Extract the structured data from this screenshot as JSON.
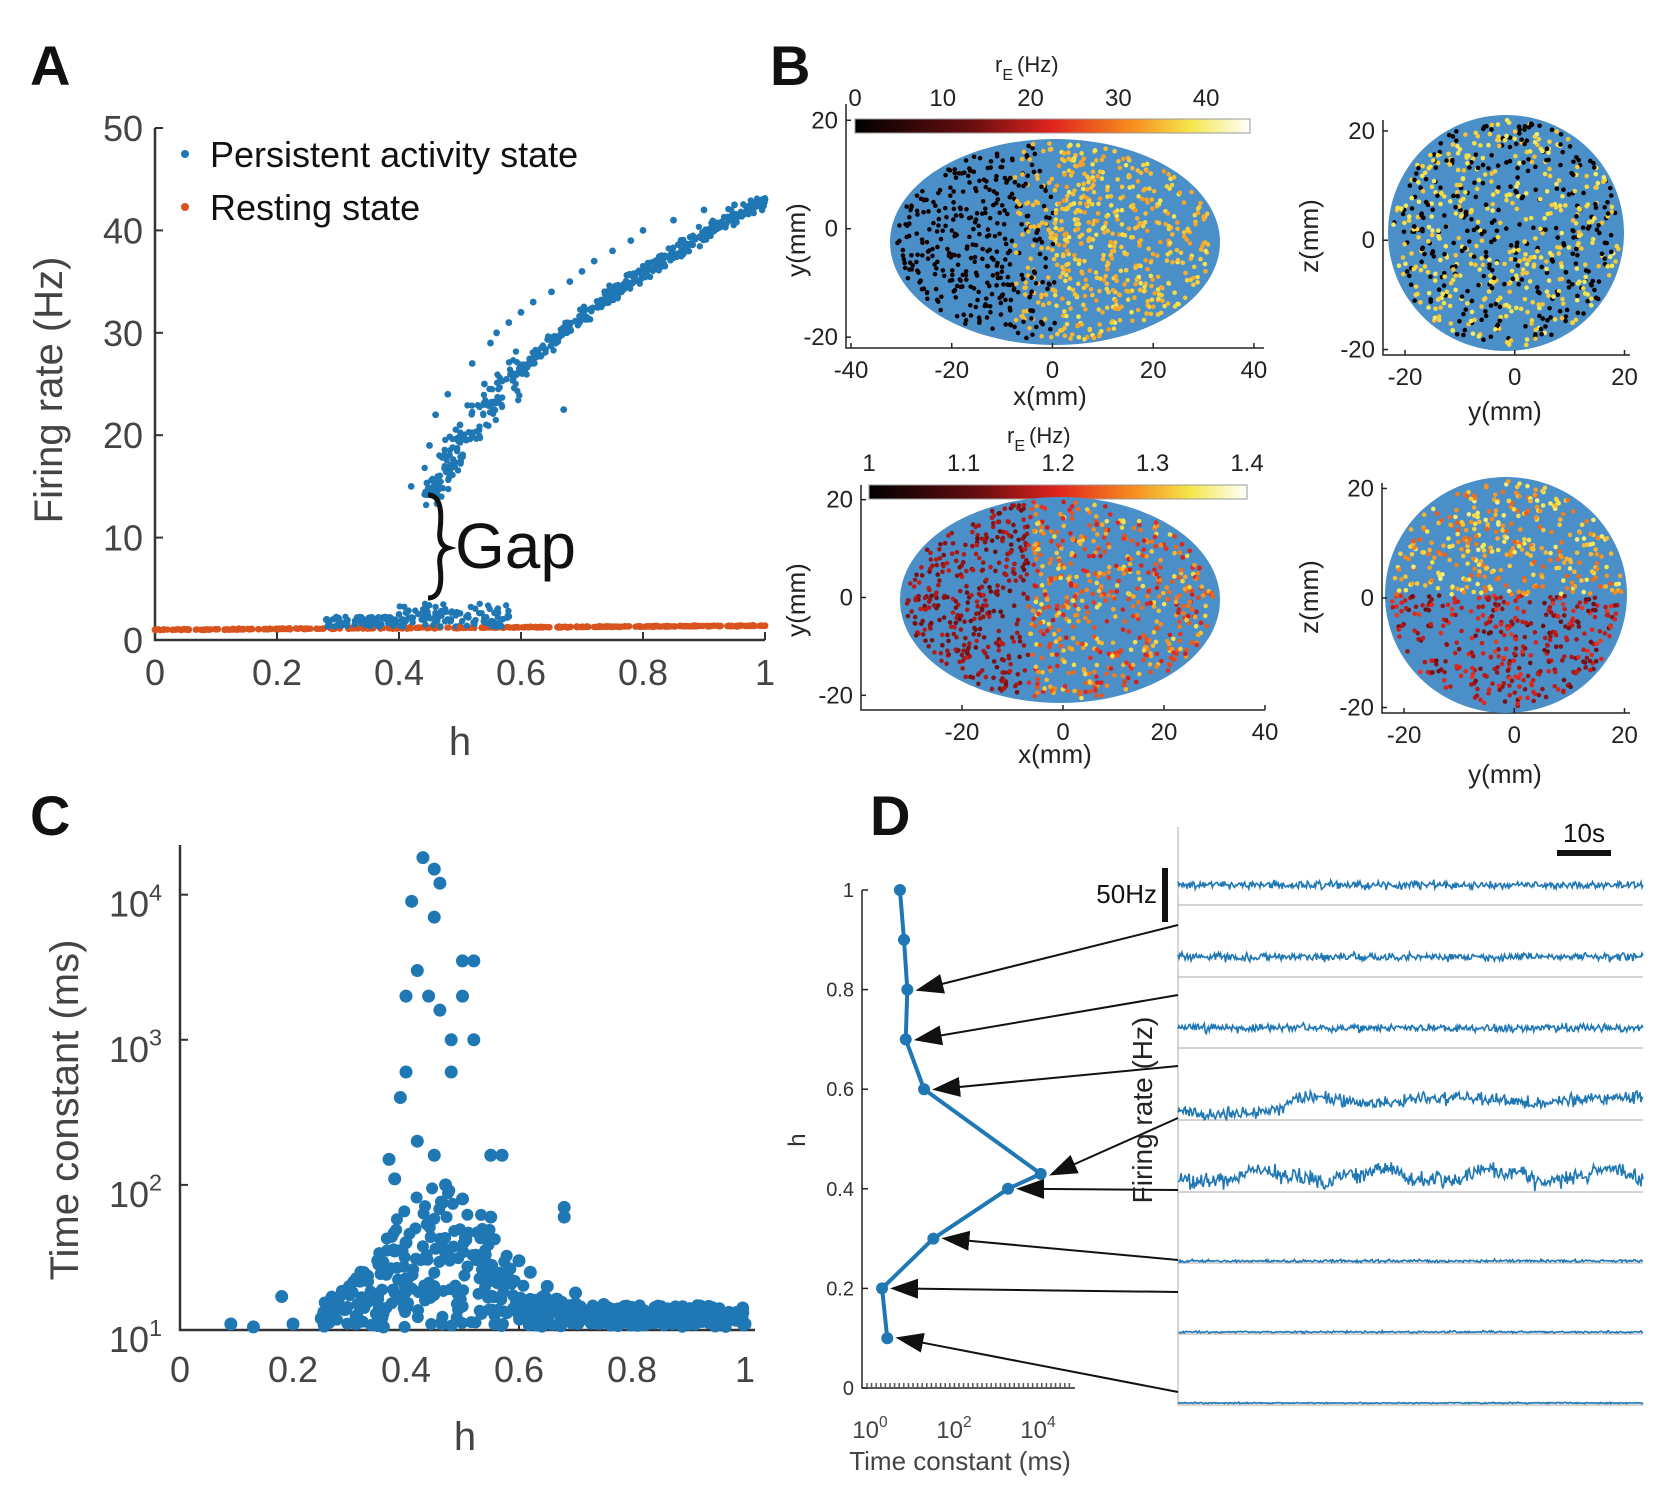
{
  "panels": {
    "A": "A",
    "B": "B",
    "C": "C",
    "D": "D"
  },
  "colors": {
    "blue": "#1f77b4",
    "orange": "#d9531e",
    "disc": "#4a8fc7"
  },
  "chart_data": [
    {
      "id": "A",
      "type": "scatter",
      "xlabel": "h",
      "ylabel": "Firing rate (Hz)",
      "xlim": [
        0,
        1
      ],
      "ylim": [
        0,
        50
      ],
      "xticks": [
        "0",
        "0.2",
        "0.4",
        "0.6",
        "0.8",
        "1"
      ],
      "yticks": [
        "0",
        "10",
        "20",
        "30",
        "40",
        "50"
      ],
      "legend_position": "top-left",
      "annotation": "Gap",
      "series": [
        {
          "name": "Persistent activity state",
          "color": "#1f77b4",
          "points": [
            [
              0.3,
              1.5
            ],
            [
              0.35,
              1.8
            ],
            [
              0.38,
              2.0
            ],
            [
              0.4,
              2.5
            ],
            [
              0.42,
              2.2
            ],
            [
              0.44,
              3.0
            ],
            [
              0.46,
              2.4
            ],
            [
              0.48,
              2.0
            ],
            [
              0.5,
              2.6
            ],
            [
              0.54,
              2.2
            ],
            [
              0.58,
              2.3
            ],
            [
              0.42,
              15
            ],
            [
              0.45,
              19
            ],
            [
              0.46,
              22
            ],
            [
              0.48,
              24
            ],
            [
              0.5,
              21
            ],
            [
              0.52,
              27
            ],
            [
              0.54,
              25
            ],
            [
              0.55,
              29
            ],
            [
              0.56,
              30
            ],
            [
              0.58,
              31
            ],
            [
              0.6,
              32
            ],
            [
              0.62,
              33
            ],
            [
              0.65,
              34
            ],
            [
              0.68,
              35
            ],
            [
              0.7,
              36
            ],
            [
              0.72,
              37
            ],
            [
              0.75,
              38
            ],
            [
              0.78,
              39
            ],
            [
              0.8,
              40
            ],
            [
              0.85,
              41
            ],
            [
              0.9,
              42
            ],
            [
              0.95,
              42.5
            ],
            [
              1.0,
              43
            ],
            [
              0.67,
              22.5
            ]
          ]
        },
        {
          "name": "Resting state",
          "color": "#d9531e",
          "points": [
            [
              0.0,
              1.0
            ],
            [
              0.25,
              1.1
            ],
            [
              0.5,
              1.2
            ],
            [
              0.75,
              1.3
            ],
            [
              1.0,
              1.4
            ]
          ]
        }
      ]
    },
    {
      "id": "B1",
      "type": "scatter",
      "xlabel": "x(mm)",
      "ylabel": "y(mm)",
      "xlim": [
        -40,
        40
      ],
      "ylim": [
        -20,
        20
      ],
      "xticks": [
        "-40",
        "-20",
        "0",
        "20",
        "40"
      ],
      "yticks": [
        "-20",
        "0",
        "20"
      ],
      "colorbar_label": "r",
      "colorbar_sub": "E",
      "colorbar_unit": "(Hz)",
      "colorbar_ticks": [
        "0",
        "10",
        "20",
        "30",
        "40"
      ],
      "colorbar_range": [
        0,
        45
      ]
    },
    {
      "id": "B2",
      "type": "scatter",
      "xlabel": "y(mm)",
      "ylabel": "z(mm)",
      "xlim": [
        -20,
        20
      ],
      "ylim": [
        -20,
        20
      ],
      "xticks": [
        "-20",
        "0",
        "20"
      ],
      "yticks": [
        "-20",
        "0",
        "20"
      ]
    },
    {
      "id": "B3",
      "type": "scatter",
      "xlabel": "x(mm)",
      "ylabel": "y(mm)",
      "xlim": [
        -40,
        40
      ],
      "ylim": [
        -20,
        20
      ],
      "xticks": [
        "-20",
        "0",
        "20",
        "40"
      ],
      "yticks": [
        "-20",
        "0",
        "20"
      ],
      "colorbar_label": "r",
      "colorbar_sub": "E",
      "colorbar_unit": "(Hz)",
      "colorbar_ticks": [
        "1",
        "1.1",
        "1.2",
        "1.3",
        "1.4"
      ],
      "colorbar_range": [
        1,
        1.4
      ]
    },
    {
      "id": "B4",
      "type": "scatter",
      "xlabel": "y(mm)",
      "ylabel": "z(mm)",
      "xlim": [
        -20,
        20
      ],
      "ylim": [
        -20,
        20
      ],
      "xticks": [
        "-20",
        "0",
        "20"
      ],
      "yticks": [
        "-20",
        "0",
        "20"
      ]
    },
    {
      "id": "C",
      "type": "scatter",
      "xlabel": "h",
      "ylabel": "Time constant (ms)",
      "xlim": [
        0,
        1
      ],
      "yscale": "log",
      "ylim": [
        10,
        20000
      ],
      "xticks": [
        "0",
        "0.2",
        "0.4",
        "0.6",
        "0.8",
        "1"
      ],
      "yticks": [
        {
          "base": "10",
          "exp": "1"
        },
        {
          "base": "10",
          "exp": "2"
        },
        {
          "base": "10",
          "exp": "3"
        },
        {
          "base": "10",
          "exp": "4"
        }
      ],
      "points": [
        [
          0.09,
          11
        ],
        [
          0.13,
          10.5
        ],
        [
          0.18,
          17
        ],
        [
          0.2,
          11
        ],
        [
          0.25,
          12
        ],
        [
          0.28,
          15
        ],
        [
          0.3,
          20
        ],
        [
          0.32,
          25
        ],
        [
          0.35,
          30
        ],
        [
          0.38,
          35
        ],
        [
          0.4,
          40
        ],
        [
          0.36,
          10.5
        ],
        [
          0.38,
          110
        ],
        [
          0.37,
          150
        ],
        [
          0.39,
          400
        ],
        [
          0.4,
          600
        ],
        [
          0.42,
          200
        ],
        [
          0.4,
          2000
        ],
        [
          0.42,
          3000
        ],
        [
          0.41,
          9000
        ],
        [
          0.43,
          18000
        ],
        [
          0.45,
          15000
        ],
        [
          0.46,
          12000
        ],
        [
          0.45,
          7000
        ],
        [
          0.44,
          2000
        ],
        [
          0.46,
          1600
        ],
        [
          0.48,
          1000
        ],
        [
          0.5,
          3500
        ],
        [
          0.52,
          3500
        ],
        [
          0.5,
          2000
        ],
        [
          0.52,
          1000
        ],
        [
          0.48,
          600
        ],
        [
          0.45,
          160
        ],
        [
          0.47,
          100
        ],
        [
          0.5,
          80
        ],
        [
          0.55,
          160
        ],
        [
          0.57,
          160
        ],
        [
          0.55,
          60
        ],
        [
          0.6,
          30
        ],
        [
          0.62,
          25
        ],
        [
          0.65,
          20
        ],
        [
          0.68,
          60
        ],
        [
          0.68,
          70
        ],
        [
          0.7,
          18
        ],
        [
          0.75,
          15
        ],
        [
          0.8,
          13
        ],
        [
          0.85,
          12
        ],
        [
          0.9,
          11
        ],
        [
          0.95,
          12
        ],
        [
          1.0,
          11
        ]
      ]
    },
    {
      "id": "D",
      "type": "line",
      "xlabel": "Time constant (ms)",
      "ylabel": "h",
      "xscale": "log",
      "xticks": [
        {
          "base": "10",
          "exp": "0"
        },
        {
          "base": "10",
          "exp": "2"
        },
        {
          "base": "10",
          "exp": "4"
        }
      ],
      "yticks": [
        "0",
        "0.2",
        "0.4",
        "0.6",
        "0.8",
        "1"
      ],
      "points": [
        {
          "h": 1.0,
          "tau": 8
        },
        {
          "h": 0.9,
          "tau": 10
        },
        {
          "h": 0.8,
          "tau": 12
        },
        {
          "h": 0.7,
          "tau": 11
        },
        {
          "h": 0.6,
          "tau": 30
        },
        {
          "h": 0.43,
          "tau": 18000
        },
        {
          "h": 0.4,
          "tau": 3000
        },
        {
          "h": 0.3,
          "tau": 50
        },
        {
          "h": 0.2,
          "tau": 3
        },
        {
          "h": 0.1,
          "tau": 4
        }
      ],
      "trace_ylabel": "Firing rate (Hz)",
      "scale_time": "10s",
      "scale_rate": "50Hz"
    }
  ]
}
